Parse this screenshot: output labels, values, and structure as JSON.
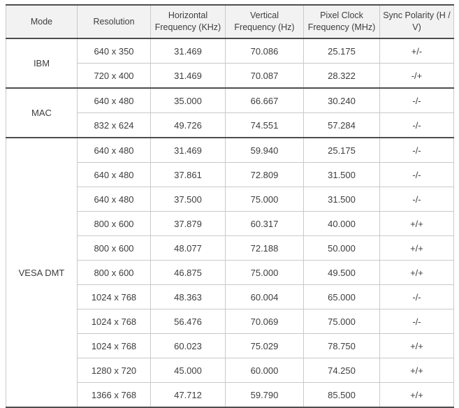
{
  "table": {
    "headers": [
      "Mode",
      "Resolution",
      "Horizontal Frequency (KHz)",
      "Vertical Frequency (Hz)",
      "Pixel Clock Frequency (MHz)",
      "Sync Polarity (H / V)"
    ],
    "groups": [
      {
        "mode": "IBM",
        "rows": [
          [
            "640 x 350",
            "31.469",
            "70.086",
            "25.175",
            "+/-"
          ],
          [
            "720 x 400",
            "31.469",
            "70.087",
            "28.322",
            "-/+"
          ]
        ]
      },
      {
        "mode": "MAC",
        "rows": [
          [
            "640 x 480",
            "35.000",
            "66.667",
            "30.240",
            "-/-"
          ],
          [
            "832 x 624",
            "49.726",
            "74.551",
            "57.284",
            "-/-"
          ]
        ]
      },
      {
        "mode": "VESA DMT",
        "rows": [
          [
            "640 x 480",
            "31.469",
            "59.940",
            "25.175",
            "-/-"
          ],
          [
            "640 x 480",
            "37.861",
            "72.809",
            "31.500",
            "-/-"
          ],
          [
            "640 x 480",
            "37.500",
            "75.000",
            "31.500",
            "-/-"
          ],
          [
            "800 x 600",
            "37.879",
            "60.317",
            "40.000",
            "+/+"
          ],
          [
            "800 x 600",
            "48.077",
            "72.188",
            "50.000",
            "+/+"
          ],
          [
            "800 x 600",
            "46.875",
            "75.000",
            "49.500",
            "+/+"
          ],
          [
            "1024 x 768",
            "48.363",
            "60.004",
            "65.000",
            "-/-"
          ],
          [
            "1024 x 768",
            "56.476",
            "70.069",
            "75.000",
            "-/-"
          ],
          [
            "1024 x 768",
            "60.023",
            "75.029",
            "78.750",
            "+/+"
          ],
          [
            "1280 x 720",
            "45.000",
            "60.000",
            "74.250",
            "+/+"
          ],
          [
            "1366 x 768",
            "47.712",
            "59.790",
            "85.500",
            "+/+"
          ]
        ]
      }
    ]
  },
  "colors": {
    "header_bg": "#f2f2f2",
    "border_light": "#c9c9c9",
    "border_dark": "#4d4d4d",
    "text": "#3d3d3d",
    "page_bg": "#ffffff"
  }
}
